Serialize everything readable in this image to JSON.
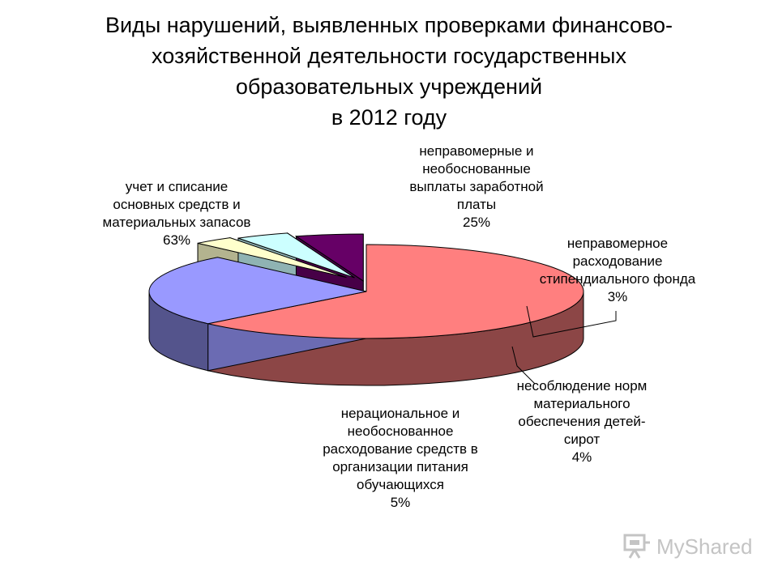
{
  "title_lines": [
    "Виды нарушений, выявленных проверками финансово-",
    "хозяйственной деятельности государственных",
    "образовательных учреждений",
    "в 2012 году"
  ],
  "chart_data": {
    "type": "pie",
    "style": "3d-exploded",
    "title": "Виды нарушений, выявленных проверками финансово-хозяйственной деятельности государственных образовательных учреждений в 2012 году",
    "slices": [
      {
        "label_lines": [
          "учет и списание",
          "основных средств и",
          "материальных запасов"
        ],
        "value": 63,
        "value_label": "63%",
        "color": "#ff7f7f"
      },
      {
        "label_lines": [
          "неправомерные и",
          "необоснованные",
          "выплаты заработной",
          "платы"
        ],
        "value": 25,
        "value_label": "25%",
        "color": "#9999ff"
      },
      {
        "label_lines": [
          "неправомерное",
          "расходование",
          "стипендиального фонда"
        ],
        "value": 3,
        "value_label": "3%",
        "color": "#ffffcc"
      },
      {
        "label_lines": [
          "несоблюдение норм",
          "материального",
          "обеспечения детей-",
          "сирот"
        ],
        "value": 4,
        "value_label": "4%",
        "color": "#ccffff"
      },
      {
        "label_lines": [
          "нерациональное и",
          "необоснованное",
          "расходование средств в",
          "организации питания",
          "обучающихся"
        ],
        "value": 5,
        "value_label": "5%",
        "color": "#660066"
      }
    ]
  },
  "watermark": {
    "text": "MyShared",
    "icon": "presentation-board-icon",
    "color": "#c4c4c4"
  }
}
